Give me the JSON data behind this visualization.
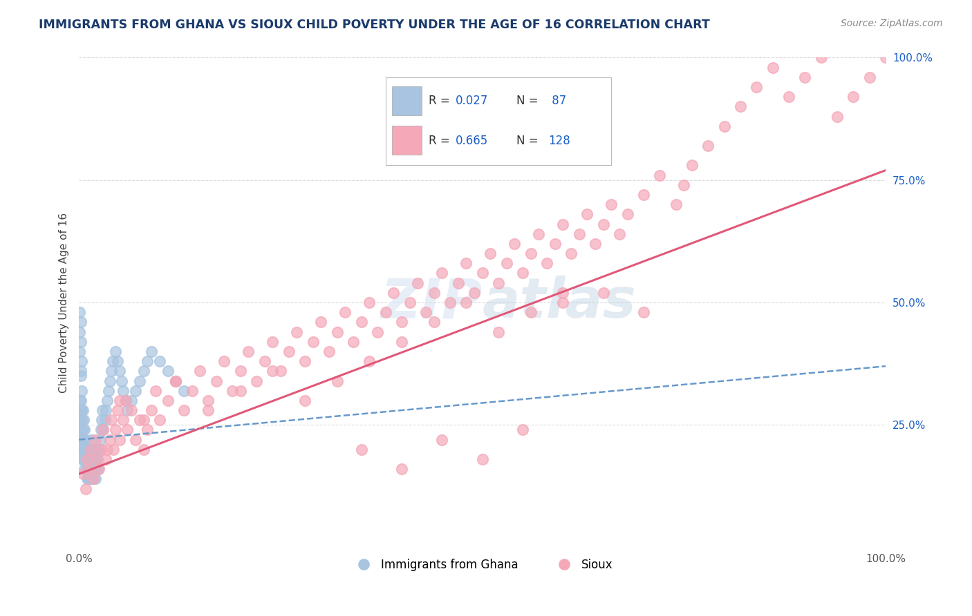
{
  "title": "IMMIGRANTS FROM GHANA VS SIOUX CHILD POVERTY UNDER THE AGE OF 16 CORRELATION CHART",
  "source": "Source: ZipAtlas.com",
  "ylabel": "Child Poverty Under the Age of 16",
  "xlim": [
    0.0,
    1.0
  ],
  "ylim": [
    0.0,
    1.0
  ],
  "ghana_R": 0.027,
  "ghana_N": 87,
  "sioux_R": 0.665,
  "sioux_N": 128,
  "ghana_color": "#a8c4e0",
  "sioux_color": "#f4a8b8",
  "ghana_line_color": "#6699cc",
  "sioux_line_color": "#e05878",
  "background_color": "#ffffff",
  "grid_color": "#cccccc",
  "title_color": "#1a3a6b",
  "legend_R_color": "#1a5fc8",
  "ytick_color": "#1a5fc8",
  "watermark_color": "#d0dff0",
  "ghana_trend_start": 0.22,
  "ghana_trend_end": 0.37,
  "sioux_trend_start": 0.15,
  "sioux_trend_end": 0.77,
  "ghana_scatter_x": [
    0.001,
    0.001,
    0.001,
    0.002,
    0.002,
    0.002,
    0.002,
    0.003,
    0.003,
    0.003,
    0.003,
    0.004,
    0.004,
    0.004,
    0.005,
    0.005,
    0.005,
    0.006,
    0.006,
    0.006,
    0.007,
    0.007,
    0.007,
    0.008,
    0.008,
    0.009,
    0.009,
    0.01,
    0.01,
    0.011,
    0.011,
    0.012,
    0.012,
    0.013,
    0.013,
    0.014,
    0.015,
    0.015,
    0.016,
    0.016,
    0.017,
    0.018,
    0.018,
    0.019,
    0.02,
    0.02,
    0.021,
    0.022,
    0.023,
    0.024,
    0.025,
    0.026,
    0.027,
    0.028,
    0.029,
    0.03,
    0.032,
    0.033,
    0.035,
    0.037,
    0.038,
    0.04,
    0.042,
    0.045,
    0.048,
    0.05,
    0.053,
    0.055,
    0.058,
    0.06,
    0.065,
    0.07,
    0.075,
    0.08,
    0.085,
    0.09,
    0.1,
    0.11,
    0.12,
    0.13,
    0.001,
    0.001,
    0.001,
    0.002,
    0.002,
    0.002,
    0.003
  ],
  "ghana_scatter_y": [
    0.25,
    0.28,
    0.3,
    0.22,
    0.26,
    0.3,
    0.35,
    0.2,
    0.24,
    0.28,
    0.32,
    0.18,
    0.22,
    0.26,
    0.2,
    0.24,
    0.28,
    0.18,
    0.22,
    0.26,
    0.16,
    0.2,
    0.24,
    0.18,
    0.22,
    0.16,
    0.2,
    0.14,
    0.18,
    0.16,
    0.2,
    0.14,
    0.18,
    0.16,
    0.2,
    0.14,
    0.18,
    0.22,
    0.16,
    0.2,
    0.18,
    0.14,
    0.18,
    0.16,
    0.14,
    0.18,
    0.16,
    0.2,
    0.18,
    0.16,
    0.2,
    0.22,
    0.24,
    0.26,
    0.28,
    0.24,
    0.26,
    0.28,
    0.3,
    0.32,
    0.34,
    0.36,
    0.38,
    0.4,
    0.38,
    0.36,
    0.34,
    0.32,
    0.3,
    0.28,
    0.3,
    0.32,
    0.34,
    0.36,
    0.38,
    0.4,
    0.38,
    0.36,
    0.34,
    0.32,
    0.4,
    0.44,
    0.48,
    0.36,
    0.42,
    0.46,
    0.38
  ],
  "sioux_scatter_x": [
    0.005,
    0.008,
    0.01,
    0.012,
    0.015,
    0.018,
    0.02,
    0.022,
    0.025,
    0.028,
    0.03,
    0.033,
    0.035,
    0.038,
    0.04,
    0.043,
    0.045,
    0.048,
    0.05,
    0.055,
    0.058,
    0.06,
    0.065,
    0.07,
    0.075,
    0.08,
    0.085,
    0.09,
    0.095,
    0.1,
    0.11,
    0.12,
    0.13,
    0.14,
    0.15,
    0.16,
    0.17,
    0.18,
    0.19,
    0.2,
    0.21,
    0.22,
    0.23,
    0.24,
    0.25,
    0.26,
    0.27,
    0.28,
    0.29,
    0.3,
    0.31,
    0.32,
    0.33,
    0.34,
    0.35,
    0.36,
    0.37,
    0.38,
    0.39,
    0.4,
    0.41,
    0.42,
    0.43,
    0.44,
    0.45,
    0.46,
    0.47,
    0.48,
    0.49,
    0.5,
    0.51,
    0.52,
    0.53,
    0.54,
    0.55,
    0.56,
    0.57,
    0.58,
    0.59,
    0.6,
    0.61,
    0.62,
    0.63,
    0.64,
    0.65,
    0.66,
    0.67,
    0.68,
    0.7,
    0.72,
    0.74,
    0.75,
    0.76,
    0.78,
    0.8,
    0.82,
    0.84,
    0.86,
    0.88,
    0.9,
    0.92,
    0.94,
    0.96,
    0.98,
    1.0,
    0.35,
    0.4,
    0.45,
    0.5,
    0.55,
    0.6,
    0.65,
    0.7,
    0.05,
    0.08,
    0.12,
    0.16,
    0.2,
    0.24,
    0.28,
    0.32,
    0.36,
    0.4,
    0.44,
    0.48,
    0.52,
    0.56,
    0.6
  ],
  "sioux_scatter_y": [
    0.15,
    0.12,
    0.18,
    0.16,
    0.2,
    0.14,
    0.22,
    0.18,
    0.16,
    0.2,
    0.24,
    0.18,
    0.2,
    0.22,
    0.26,
    0.2,
    0.24,
    0.28,
    0.22,
    0.26,
    0.3,
    0.24,
    0.28,
    0.22,
    0.26,
    0.2,
    0.24,
    0.28,
    0.32,
    0.26,
    0.3,
    0.34,
    0.28,
    0.32,
    0.36,
    0.3,
    0.34,
    0.38,
    0.32,
    0.36,
    0.4,
    0.34,
    0.38,
    0.42,
    0.36,
    0.4,
    0.44,
    0.38,
    0.42,
    0.46,
    0.4,
    0.44,
    0.48,
    0.42,
    0.46,
    0.5,
    0.44,
    0.48,
    0.52,
    0.46,
    0.5,
    0.54,
    0.48,
    0.52,
    0.56,
    0.5,
    0.54,
    0.58,
    0.52,
    0.56,
    0.6,
    0.54,
    0.58,
    0.62,
    0.56,
    0.6,
    0.64,
    0.58,
    0.62,
    0.66,
    0.6,
    0.64,
    0.68,
    0.62,
    0.66,
    0.7,
    0.64,
    0.68,
    0.72,
    0.76,
    0.7,
    0.74,
    0.78,
    0.82,
    0.86,
    0.9,
    0.94,
    0.98,
    0.92,
    0.96,
    1.0,
    0.88,
    0.92,
    0.96,
    1.0,
    0.2,
    0.16,
    0.22,
    0.18,
    0.24,
    0.5,
    0.52,
    0.48,
    0.3,
    0.26,
    0.34,
    0.28,
    0.32,
    0.36,
    0.3,
    0.34,
    0.38,
    0.42,
    0.46,
    0.5,
    0.44,
    0.48,
    0.52
  ]
}
